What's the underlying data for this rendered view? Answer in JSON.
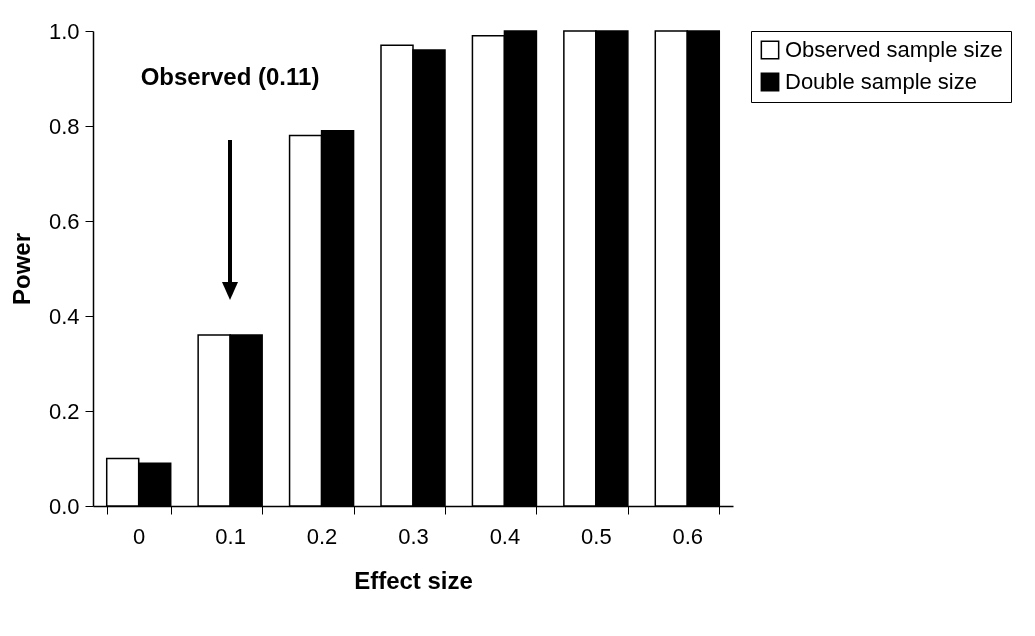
{
  "chart_data": {
    "type": "bar",
    "xlabel": "Effect size",
    "ylabel": "Power",
    "categories": [
      "0",
      "0.1",
      "0.2",
      "0.3",
      "0.4",
      "0.5",
      "0.6"
    ],
    "series": [
      {
        "name": "Observed sample size",
        "color": "#ffffff",
        "values": [
          0.1,
          0.36,
          0.78,
          0.97,
          0.99,
          1.0,
          1.0
        ]
      },
      {
        "name": "Double sample size",
        "color": "#000000",
        "values": [
          0.09,
          0.36,
          0.79,
          0.96,
          1.0,
          1.0,
          1.0
        ]
      }
    ],
    "ylim": [
      0,
      1
    ],
    "yticks": [
      {
        "value": 0,
        "label": "0.0"
      },
      {
        "value": 0.2,
        "label": "0.2"
      },
      {
        "value": 0.4,
        "label": "0.4"
      },
      {
        "value": 0.6,
        "label": "0.6"
      },
      {
        "value": 0.8,
        "label": "0.8"
      },
      {
        "value": 1,
        "label": "1.0"
      }
    ],
    "annotations": [
      "Observed (0.11)"
    ],
    "legend": "right",
    "grid": false
  }
}
